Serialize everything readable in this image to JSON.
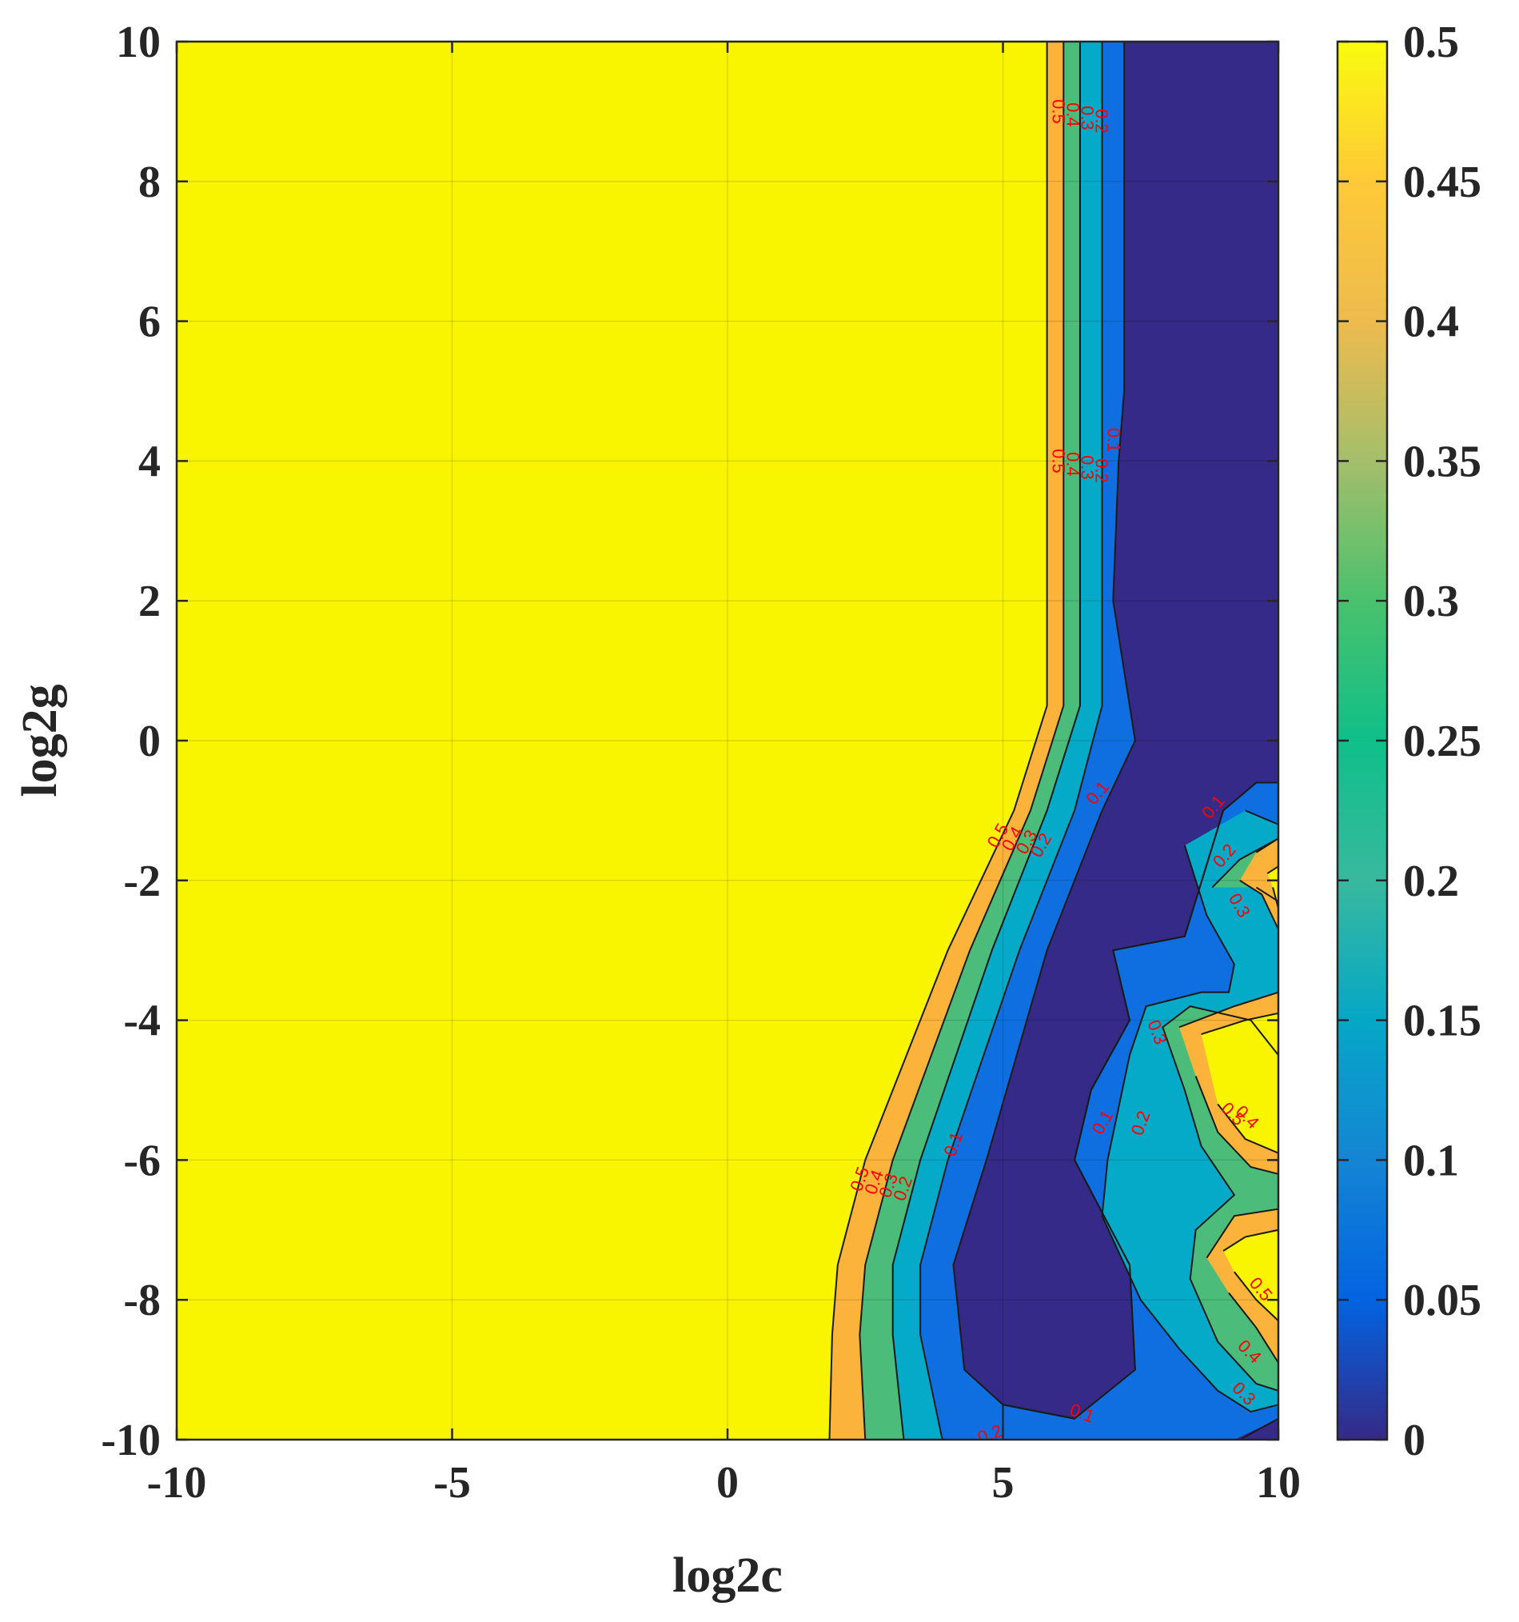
{
  "chart_data": {
    "type": "contour",
    "xlabel": "log2c",
    "ylabel": "log2g",
    "xlim": [
      -10,
      10
    ],
    "ylim": [
      -10,
      10
    ],
    "xticks": [
      "-10",
      "-5",
      "0",
      "5",
      "10"
    ],
    "yticks": [
      "10",
      "8",
      "6",
      "4",
      "2",
      "0",
      "-2",
      "-4",
      "-6",
      "-8",
      "-10"
    ],
    "colorbar": {
      "range": [
        0,
        0.5
      ],
      "ticks": [
        "0.5",
        "0.45",
        "0.4",
        "0.35",
        "0.3",
        "0.25",
        "0.2",
        "0.15",
        "0.1",
        "0.05",
        "0"
      ]
    },
    "grid": true,
    "contour_levels": [
      0.1,
      0.2,
      0.3,
      0.4,
      0.5
    ],
    "level_colors": {
      "below_0.1": "#352a87",
      "0.1_0.2": "#0f6fe0",
      "0.2_0.3": "#04aac8",
      "0.3_0.4": "#4bbc7a",
      "0.4_0.5": "#fbb33c",
      "above_0.5": "#f9f500"
    },
    "left_boundaries": [
      {
        "level": 0.5,
        "points": [
          [
            5.8,
            10
          ],
          [
            5.8,
            0.5
          ],
          [
            5.2,
            -1
          ],
          [
            4,
            -3
          ],
          [
            2.5,
            -6
          ],
          [
            2,
            -7.5
          ],
          [
            1.9,
            -8.5
          ],
          [
            1.85,
            -10
          ]
        ]
      },
      {
        "level": 0.4,
        "points": [
          [
            6.1,
            10
          ],
          [
            6.1,
            0.5
          ],
          [
            5.5,
            -1
          ],
          [
            4.4,
            -3
          ],
          [
            3,
            -6
          ],
          [
            2.5,
            -7.5
          ],
          [
            2.4,
            -8.5
          ],
          [
            2.5,
            -10
          ]
        ]
      },
      {
        "level": 0.3,
        "points": [
          [
            6.4,
            10
          ],
          [
            6.4,
            0.5
          ],
          [
            5.8,
            -1
          ],
          [
            4.8,
            -3
          ],
          [
            3.5,
            -6
          ],
          [
            3,
            -7.5
          ],
          [
            3,
            -8.5
          ],
          [
            3.2,
            -10
          ]
        ]
      },
      {
        "level": 0.2,
        "points": [
          [
            6.8,
            10
          ],
          [
            6.8,
            0.5
          ],
          [
            6.3,
            -1
          ],
          [
            5.3,
            -3
          ],
          [
            4,
            -6
          ],
          [
            3.5,
            -7.5
          ],
          [
            3.5,
            -8.5
          ],
          [
            3.9,
            -10
          ]
        ]
      },
      {
        "level": 0.1,
        "points": [
          [
            7.2,
            10
          ],
          [
            7.2,
            5
          ],
          [
            7.1,
            4
          ],
          [
            7,
            2
          ],
          [
            7.4,
            0
          ],
          [
            6.8,
            -1
          ],
          [
            5.8,
            -3
          ],
          [
            4.7,
            -6
          ],
          [
            4.1,
            -7.5
          ],
          [
            4.3,
            -9
          ],
          [
            5,
            -9.5
          ],
          [
            6.3,
            -9.7
          ],
          [
            7.4,
            -9
          ],
          [
            7.3,
            -7.5
          ],
          [
            6.3,
            -6
          ],
          [
            6.6,
            -5
          ],
          [
            7.3,
            -4
          ],
          [
            7,
            -3
          ],
          [
            8.3,
            -2.8
          ],
          [
            9,
            -1
          ],
          [
            9.6,
            -0.6
          ]
        ]
      }
    ],
    "contour_labels": [
      "0.5",
      "0.4",
      "0.3",
      "0.2",
      "0.1"
    ]
  }
}
